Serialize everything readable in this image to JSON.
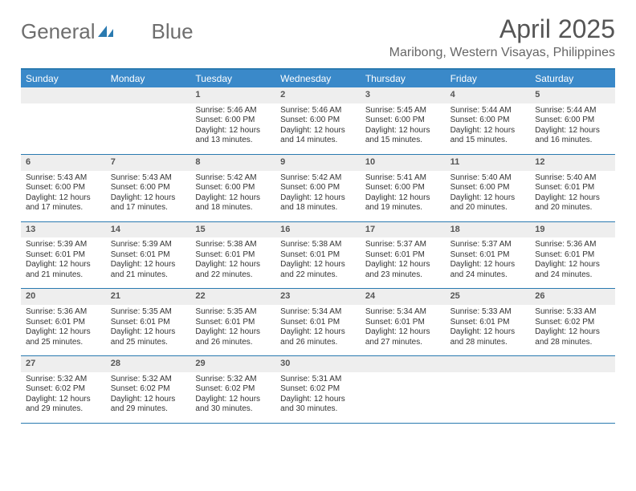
{
  "logo": {
    "text_a": "General",
    "text_b": "Blue"
  },
  "title": "April 2025",
  "location": "Maribong, Western Visayas, Philippines",
  "colors": {
    "header_bg": "#3a89c9",
    "header_text": "#ffffff",
    "border": "#2a7ab0",
    "daynum_bg": "#eeeeee",
    "daynum_text": "#555555",
    "body_text": "#333333",
    "title_text": "#555555",
    "logo_text": "#6e6e6e",
    "background": "#ffffff"
  },
  "day_names": [
    "Sunday",
    "Monday",
    "Tuesday",
    "Wednesday",
    "Thursday",
    "Friday",
    "Saturday"
  ],
  "layout": {
    "start_day_index": 2,
    "days_in_month": 30,
    "cols": 7,
    "rows": 5,
    "fontsize_title": 32,
    "fontsize_location": 16,
    "fontsize_dayheader": 12,
    "fontsize_daynum": 11,
    "fontsize_details": 10
  },
  "days": [
    {
      "n": "1",
      "sunrise": "5:46 AM",
      "sunset": "6:00 PM",
      "daylight": "12 hours and 13 minutes."
    },
    {
      "n": "2",
      "sunrise": "5:46 AM",
      "sunset": "6:00 PM",
      "daylight": "12 hours and 14 minutes."
    },
    {
      "n": "3",
      "sunrise": "5:45 AM",
      "sunset": "6:00 PM",
      "daylight": "12 hours and 15 minutes."
    },
    {
      "n": "4",
      "sunrise": "5:44 AM",
      "sunset": "6:00 PM",
      "daylight": "12 hours and 15 minutes."
    },
    {
      "n": "5",
      "sunrise": "5:44 AM",
      "sunset": "6:00 PM",
      "daylight": "12 hours and 16 minutes."
    },
    {
      "n": "6",
      "sunrise": "5:43 AM",
      "sunset": "6:00 PM",
      "daylight": "12 hours and 17 minutes."
    },
    {
      "n": "7",
      "sunrise": "5:43 AM",
      "sunset": "6:00 PM",
      "daylight": "12 hours and 17 minutes."
    },
    {
      "n": "8",
      "sunrise": "5:42 AM",
      "sunset": "6:00 PM",
      "daylight": "12 hours and 18 minutes."
    },
    {
      "n": "9",
      "sunrise": "5:42 AM",
      "sunset": "6:00 PM",
      "daylight": "12 hours and 18 minutes."
    },
    {
      "n": "10",
      "sunrise": "5:41 AM",
      "sunset": "6:00 PM",
      "daylight": "12 hours and 19 minutes."
    },
    {
      "n": "11",
      "sunrise": "5:40 AM",
      "sunset": "6:00 PM",
      "daylight": "12 hours and 20 minutes."
    },
    {
      "n": "12",
      "sunrise": "5:40 AM",
      "sunset": "6:01 PM",
      "daylight": "12 hours and 20 minutes."
    },
    {
      "n": "13",
      "sunrise": "5:39 AM",
      "sunset": "6:01 PM",
      "daylight": "12 hours and 21 minutes."
    },
    {
      "n": "14",
      "sunrise": "5:39 AM",
      "sunset": "6:01 PM",
      "daylight": "12 hours and 21 minutes."
    },
    {
      "n": "15",
      "sunrise": "5:38 AM",
      "sunset": "6:01 PM",
      "daylight": "12 hours and 22 minutes."
    },
    {
      "n": "16",
      "sunrise": "5:38 AM",
      "sunset": "6:01 PM",
      "daylight": "12 hours and 22 minutes."
    },
    {
      "n": "17",
      "sunrise": "5:37 AM",
      "sunset": "6:01 PM",
      "daylight": "12 hours and 23 minutes."
    },
    {
      "n": "18",
      "sunrise": "5:37 AM",
      "sunset": "6:01 PM",
      "daylight": "12 hours and 24 minutes."
    },
    {
      "n": "19",
      "sunrise": "5:36 AM",
      "sunset": "6:01 PM",
      "daylight": "12 hours and 24 minutes."
    },
    {
      "n": "20",
      "sunrise": "5:36 AM",
      "sunset": "6:01 PM",
      "daylight": "12 hours and 25 minutes."
    },
    {
      "n": "21",
      "sunrise": "5:35 AM",
      "sunset": "6:01 PM",
      "daylight": "12 hours and 25 minutes."
    },
    {
      "n": "22",
      "sunrise": "5:35 AM",
      "sunset": "6:01 PM",
      "daylight": "12 hours and 26 minutes."
    },
    {
      "n": "23",
      "sunrise": "5:34 AM",
      "sunset": "6:01 PM",
      "daylight": "12 hours and 26 minutes."
    },
    {
      "n": "24",
      "sunrise": "5:34 AM",
      "sunset": "6:01 PM",
      "daylight": "12 hours and 27 minutes."
    },
    {
      "n": "25",
      "sunrise": "5:33 AM",
      "sunset": "6:01 PM",
      "daylight": "12 hours and 28 minutes."
    },
    {
      "n": "26",
      "sunrise": "5:33 AM",
      "sunset": "6:02 PM",
      "daylight": "12 hours and 28 minutes."
    },
    {
      "n": "27",
      "sunrise": "5:32 AM",
      "sunset": "6:02 PM",
      "daylight": "12 hours and 29 minutes."
    },
    {
      "n": "28",
      "sunrise": "5:32 AM",
      "sunset": "6:02 PM",
      "daylight": "12 hours and 29 minutes."
    },
    {
      "n": "29",
      "sunrise": "5:32 AM",
      "sunset": "6:02 PM",
      "daylight": "12 hours and 30 minutes."
    },
    {
      "n": "30",
      "sunrise": "5:31 AM",
      "sunset": "6:02 PM",
      "daylight": "12 hours and 30 minutes."
    }
  ],
  "labels": {
    "sunrise": "Sunrise:",
    "sunset": "Sunset:",
    "daylight": "Daylight:"
  }
}
